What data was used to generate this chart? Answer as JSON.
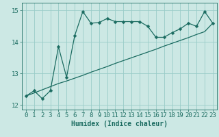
{
  "title": "",
  "xlabel": "Humidex (Indice chaleur)",
  "ylabel": "",
  "bg_color": "#cce8e4",
  "grid_color": "#99ccc8",
  "line_color": "#1a6b60",
  "x_values": [
    0,
    1,
    2,
    3,
    4,
    5,
    6,
    7,
    8,
    9,
    10,
    11,
    12,
    13,
    14,
    15,
    16,
    17,
    18,
    19,
    20,
    21,
    22,
    23
  ],
  "y_curve": [
    12.28,
    12.45,
    12.2,
    12.45,
    13.85,
    12.88,
    14.2,
    14.97,
    14.6,
    14.62,
    14.75,
    14.65,
    14.65,
    14.65,
    14.65,
    14.5,
    14.15,
    14.15,
    14.3,
    14.42,
    14.6,
    14.5,
    14.97,
    14.6
  ],
  "y_linear": [
    12.28,
    12.38,
    12.48,
    12.58,
    12.68,
    12.76,
    12.85,
    12.94,
    13.04,
    13.13,
    13.22,
    13.32,
    13.41,
    13.5,
    13.59,
    13.68,
    13.77,
    13.87,
    13.96,
    14.05,
    14.14,
    14.24,
    14.33,
    14.6
  ],
  "ylim": [
    11.85,
    15.25
  ],
  "xlim": [
    -0.5,
    23.5
  ],
  "xticks": [
    0,
    1,
    2,
    3,
    4,
    5,
    6,
    7,
    8,
    9,
    10,
    11,
    12,
    13,
    14,
    15,
    16,
    17,
    18,
    19,
    20,
    21,
    22,
    23
  ],
  "yticks": [
    12,
    13,
    14,
    15
  ],
  "markersize": 2.5,
  "linewidth": 0.9,
  "xlabel_fontsize": 7,
  "tick_fontsize": 6.5
}
